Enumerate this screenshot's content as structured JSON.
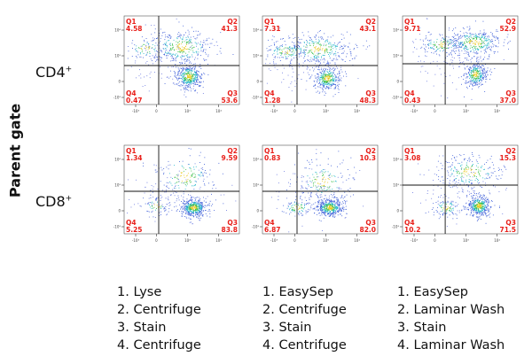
{
  "y_axis_label": "Parent gate",
  "rows": [
    {
      "label": "CD4",
      "sup": "+"
    },
    {
      "label": "CD8",
      "sup": "+"
    }
  ],
  "columns": [
    {
      "steps": [
        "1. Lyse",
        "2. Centrifuge",
        "3. Stain",
        "4. Centrifuge"
      ]
    },
    {
      "steps": [
        "1. EasySep",
        "2. Centrifuge",
        "3. Stain",
        "4. Centrifuge"
      ]
    },
    {
      "steps": [
        "1. EasySep",
        "2. Laminar Wash",
        "3. Stain",
        "4. Laminar Wash"
      ]
    }
  ],
  "chart_data": [
    {
      "type": "scatter",
      "row": "CD4+",
      "column": 1,
      "quadrants": {
        "Q1": "4.58",
        "Q2": "41.3",
        "Q3": "53.6",
        "Q4": "0.47"
      },
      "tick_labels_x": [
        "-10³",
        "0",
        "10³",
        "10⁴"
      ],
      "tick_labels_y": [
        "-10³",
        "0",
        "10³",
        "10⁴"
      ]
    },
    {
      "type": "scatter",
      "row": "CD4+",
      "column": 2,
      "quadrants": {
        "Q1": "7.31",
        "Q2": "43.1",
        "Q3": "48.3",
        "Q4": "1.28"
      },
      "tick_labels_x": [
        "-10³",
        "0",
        "10³",
        "10⁴"
      ],
      "tick_labels_y": [
        "-10³",
        "0",
        "10³",
        "10⁴"
      ]
    },
    {
      "type": "scatter",
      "row": "CD4+",
      "column": 3,
      "quadrants": {
        "Q1": "9.71",
        "Q2": "52.9",
        "Q3": "37.0",
        "Q4": "0.43"
      },
      "tick_labels_x": [
        "-10³",
        "0",
        "10³",
        "10⁴"
      ],
      "tick_labels_y": [
        "-10³",
        "0",
        "10³",
        "10⁴"
      ]
    },
    {
      "type": "scatter",
      "row": "CD8+",
      "column": 1,
      "quadrants": {
        "Q1": "1.34",
        "Q2": "9.59",
        "Q3": "83.8",
        "Q4": "5.25"
      },
      "tick_labels_x": [
        "-10³",
        "0",
        "10³",
        "10⁴"
      ],
      "tick_labels_y": [
        "-10³",
        "0",
        "10³",
        "10⁴"
      ]
    },
    {
      "type": "scatter",
      "row": "CD8+",
      "column": 2,
      "quadrants": {
        "Q1": "0.83",
        "Q2": "10.3",
        "Q3": "82.0",
        "Q4": "6.87"
      },
      "tick_labels_x": [
        "-10³",
        "0",
        "10³",
        "10⁴"
      ],
      "tick_labels_y": [
        "-10³",
        "0",
        "10³",
        "10⁴"
      ]
    },
    {
      "type": "scatter",
      "row": "CD8+",
      "column": 3,
      "quadrants": {
        "Q1": "3.08",
        "Q2": "15.3",
        "Q3": "71.5",
        "Q4": "10.2"
      },
      "tick_labels_x": [
        "-10³",
        "0",
        "10³",
        "10⁴"
      ],
      "tick_labels_y": [
        "-10³",
        "0",
        "10³",
        "10⁴"
      ]
    }
  ]
}
